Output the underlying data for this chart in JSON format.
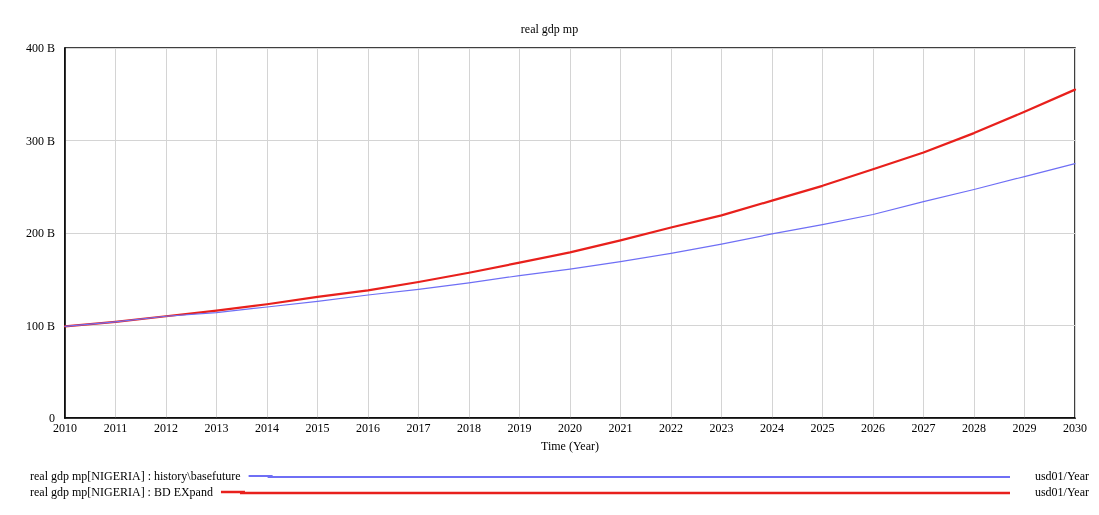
{
  "chart_data": {
    "type": "line",
    "title": "real gdp mp",
    "xlabel": "Time (Year)",
    "x": [
      2010,
      2011,
      2012,
      2013,
      2014,
      2015,
      2016,
      2017,
      2018,
      2019,
      2020,
      2021,
      2022,
      2023,
      2024,
      2025,
      2026,
      2027,
      2028,
      2029,
      2030
    ],
    "series": [
      {
        "name": "real gdp mp[NIGERIA] : history\\basefuture",
        "color": "#6f6ff5",
        "values": [
          99,
          104,
          110,
          114,
          120,
          126,
          133,
          139,
          146,
          154,
          161,
          169,
          178,
          188,
          199,
          209,
          220,
          234,
          247,
          261,
          275
        ]
      },
      {
        "name": "real gdp mp[NIGERIA] : BD EXpand",
        "color": "#e8201c",
        "values": [
          99,
          104,
          110,
          116,
          123,
          131,
          138,
          147,
          157,
          168,
          179,
          192,
          206,
          219,
          235,
          251,
          269,
          287,
          308,
          331,
          355
        ]
      }
    ],
    "annotations": [
      "usd01/Year",
      "usd01/Year"
    ],
    "xlim": [
      2010,
      2030
    ],
    "xticks": [
      2010,
      2011,
      2012,
      2013,
      2014,
      2015,
      2016,
      2017,
      2018,
      2019,
      2020,
      2021,
      2022,
      2023,
      2024,
      2025,
      2026,
      2027,
      2028,
      2029,
      2030
    ],
    "ylim": [
      0,
      400
    ],
    "yticks": [
      0,
      {
        "value": 100,
        "label": "100 B"
      },
      {
        "value": 200,
        "label": "200 B"
      },
      {
        "value": 300,
        "label": "300 B"
      },
      {
        "value": 400,
        "label": "400 B"
      }
    ],
    "grid": true,
    "legend": "bottom",
    "marker": "none",
    "line_style": "solid"
  }
}
